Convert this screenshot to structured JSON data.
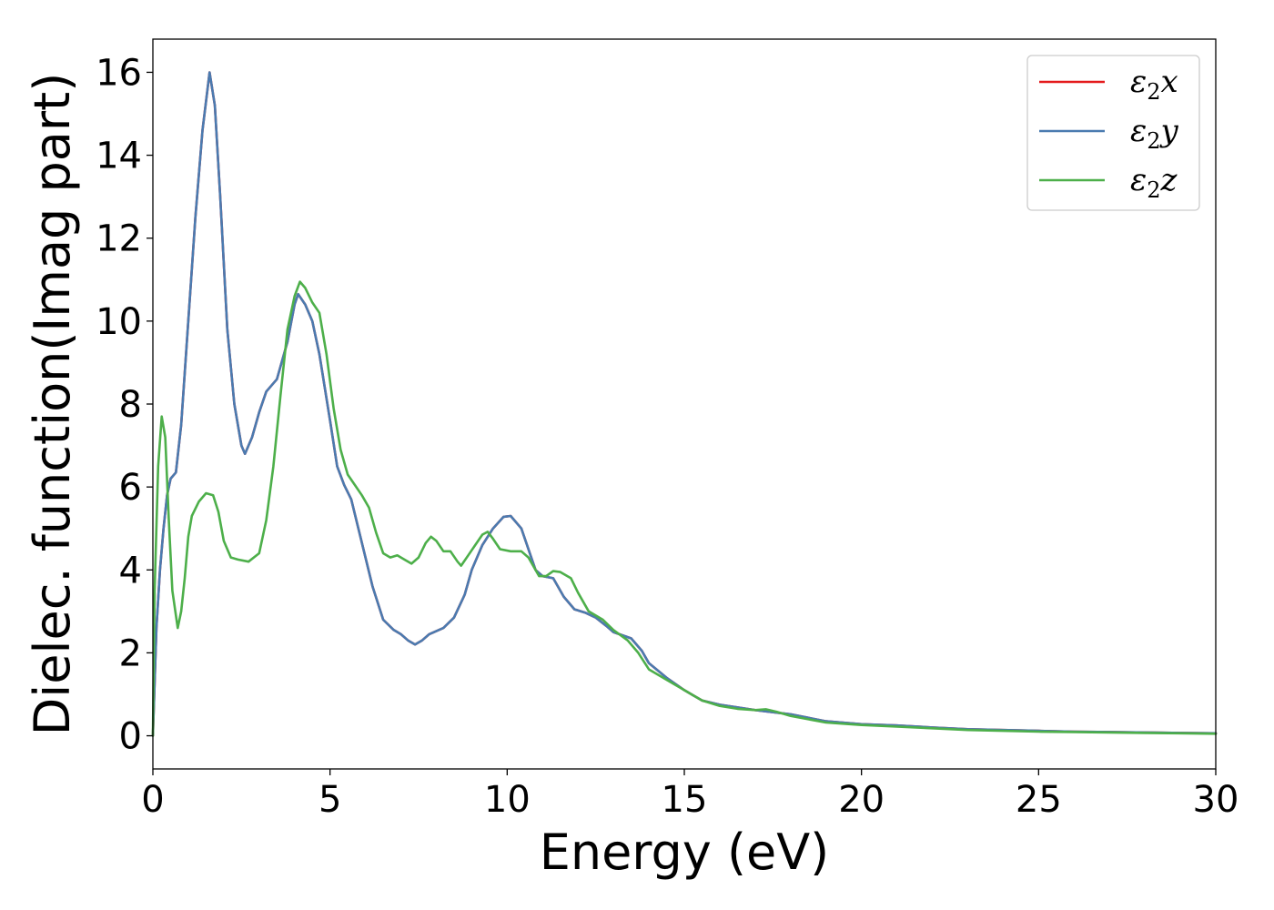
{
  "chart_data": {
    "type": "line",
    "xlabel": "Energy (eV)",
    "ylabel": "Dielec. function(Imag part)",
    "xlim": [
      0,
      30
    ],
    "ylim": [
      -0.8,
      16.8
    ],
    "x_ticks": [
      "0",
      "5",
      "10",
      "15",
      "20",
      "25",
      "30"
    ],
    "y_ticks": [
      "0",
      "2",
      "4",
      "6",
      "8",
      "10",
      "12",
      "14",
      "16"
    ],
    "grid": false,
    "legend_position": "top-right",
    "series": [
      {
        "name": "ε2x",
        "legend_base": "ε",
        "legend_sub": "2",
        "legend_tail": "x",
        "color": "#e41a1c",
        "points": [
          [
            0,
            0
          ],
          [
            0.1,
            2.6
          ],
          [
            0.2,
            4.0
          ],
          [
            0.3,
            5.0
          ],
          [
            0.4,
            5.8
          ],
          [
            0.5,
            6.2
          ],
          [
            0.65,
            6.35
          ],
          [
            0.8,
            7.5
          ],
          [
            1.0,
            10.0
          ],
          [
            1.2,
            12.5
          ],
          [
            1.4,
            14.6
          ],
          [
            1.6,
            16.0
          ],
          [
            1.75,
            15.2
          ],
          [
            1.9,
            13.0
          ],
          [
            2.1,
            9.8
          ],
          [
            2.3,
            8.0
          ],
          [
            2.5,
            7.0
          ],
          [
            2.6,
            6.8
          ],
          [
            2.8,
            7.2
          ],
          [
            3.0,
            7.8
          ],
          [
            3.2,
            8.3
          ],
          [
            3.5,
            8.6
          ],
          [
            3.8,
            9.5
          ],
          [
            4.0,
            10.4
          ],
          [
            4.1,
            10.65
          ],
          [
            4.3,
            10.4
          ],
          [
            4.5,
            10.0
          ],
          [
            4.7,
            9.2
          ],
          [
            5.0,
            7.6
          ],
          [
            5.2,
            6.5
          ],
          [
            5.4,
            6.05
          ],
          [
            5.6,
            5.7
          ],
          [
            5.8,
            5.0
          ],
          [
            6.0,
            4.3
          ],
          [
            6.2,
            3.6
          ],
          [
            6.5,
            2.8
          ],
          [
            6.8,
            2.55
          ],
          [
            7.0,
            2.45
          ],
          [
            7.2,
            2.3
          ],
          [
            7.4,
            2.2
          ],
          [
            7.6,
            2.3
          ],
          [
            7.8,
            2.45
          ],
          [
            8.2,
            2.6
          ],
          [
            8.5,
            2.85
          ],
          [
            8.8,
            3.4
          ],
          [
            9.0,
            4.0
          ],
          [
            9.3,
            4.6
          ],
          [
            9.6,
            5.0
          ],
          [
            9.9,
            5.28
          ],
          [
            10.1,
            5.3
          ],
          [
            10.4,
            5.0
          ],
          [
            10.6,
            4.5
          ],
          [
            10.8,
            4.0
          ],
          [
            11.0,
            3.85
          ],
          [
            11.3,
            3.8
          ],
          [
            11.6,
            3.35
          ],
          [
            11.9,
            3.05
          ],
          [
            12.2,
            2.97
          ],
          [
            12.5,
            2.85
          ],
          [
            12.8,
            2.65
          ],
          [
            13.0,
            2.5
          ],
          [
            13.5,
            2.35
          ],
          [
            13.8,
            2.05
          ],
          [
            14.0,
            1.75
          ],
          [
            14.5,
            1.4
          ],
          [
            15.0,
            1.1
          ],
          [
            15.5,
            0.85
          ],
          [
            16.0,
            0.75
          ],
          [
            17.0,
            0.62
          ],
          [
            18.0,
            0.52
          ],
          [
            19.0,
            0.35
          ],
          [
            20.0,
            0.28
          ],
          [
            21.0,
            0.25
          ],
          [
            22.0,
            0.2
          ],
          [
            23.0,
            0.16
          ],
          [
            24.0,
            0.14
          ],
          [
            25.0,
            0.12
          ],
          [
            26.0,
            0.1
          ],
          [
            27.0,
            0.09
          ],
          [
            28.0,
            0.08
          ],
          [
            29.0,
            0.07
          ],
          [
            30.0,
            0.06
          ]
        ]
      },
      {
        "name": "ε2y",
        "legend_base": "ε",
        "legend_sub": "2",
        "legend_tail": "y",
        "color": "#4a7bb0",
        "points": [
          [
            0,
            0
          ],
          [
            0.1,
            2.6
          ],
          [
            0.2,
            4.0
          ],
          [
            0.3,
            5.0
          ],
          [
            0.4,
            5.8
          ],
          [
            0.5,
            6.2
          ],
          [
            0.65,
            6.35
          ],
          [
            0.8,
            7.5
          ],
          [
            1.0,
            10.0
          ],
          [
            1.2,
            12.5
          ],
          [
            1.4,
            14.6
          ],
          [
            1.6,
            16.0
          ],
          [
            1.75,
            15.2
          ],
          [
            1.9,
            13.0
          ],
          [
            2.1,
            9.8
          ],
          [
            2.3,
            8.0
          ],
          [
            2.5,
            7.0
          ],
          [
            2.6,
            6.8
          ],
          [
            2.8,
            7.2
          ],
          [
            3.0,
            7.8
          ],
          [
            3.2,
            8.3
          ],
          [
            3.5,
            8.6
          ],
          [
            3.8,
            9.5
          ],
          [
            4.0,
            10.4
          ],
          [
            4.1,
            10.65
          ],
          [
            4.3,
            10.4
          ],
          [
            4.5,
            10.0
          ],
          [
            4.7,
            9.2
          ],
          [
            5.0,
            7.6
          ],
          [
            5.2,
            6.5
          ],
          [
            5.4,
            6.05
          ],
          [
            5.6,
            5.7
          ],
          [
            5.8,
            5.0
          ],
          [
            6.0,
            4.3
          ],
          [
            6.2,
            3.6
          ],
          [
            6.5,
            2.8
          ],
          [
            6.8,
            2.55
          ],
          [
            7.0,
            2.45
          ],
          [
            7.2,
            2.3
          ],
          [
            7.4,
            2.2
          ],
          [
            7.6,
            2.3
          ],
          [
            7.8,
            2.45
          ],
          [
            8.2,
            2.6
          ],
          [
            8.5,
            2.85
          ],
          [
            8.8,
            3.4
          ],
          [
            9.0,
            4.0
          ],
          [
            9.3,
            4.6
          ],
          [
            9.6,
            5.0
          ],
          [
            9.9,
            5.28
          ],
          [
            10.1,
            5.3
          ],
          [
            10.4,
            5.0
          ],
          [
            10.6,
            4.5
          ],
          [
            10.8,
            4.0
          ],
          [
            11.0,
            3.85
          ],
          [
            11.3,
            3.8
          ],
          [
            11.6,
            3.35
          ],
          [
            11.9,
            3.05
          ],
          [
            12.2,
            2.97
          ],
          [
            12.5,
            2.85
          ],
          [
            12.8,
            2.65
          ],
          [
            13.0,
            2.5
          ],
          [
            13.5,
            2.35
          ],
          [
            13.8,
            2.05
          ],
          [
            14.0,
            1.75
          ],
          [
            14.5,
            1.4
          ],
          [
            15.0,
            1.1
          ],
          [
            15.5,
            0.85
          ],
          [
            16.0,
            0.75
          ],
          [
            17.0,
            0.62
          ],
          [
            18.0,
            0.52
          ],
          [
            19.0,
            0.35
          ],
          [
            20.0,
            0.28
          ],
          [
            21.0,
            0.25
          ],
          [
            22.0,
            0.2
          ],
          [
            23.0,
            0.16
          ],
          [
            24.0,
            0.14
          ],
          [
            25.0,
            0.12
          ],
          [
            26.0,
            0.1
          ],
          [
            27.0,
            0.09
          ],
          [
            28.0,
            0.08
          ],
          [
            29.0,
            0.07
          ],
          [
            30.0,
            0.06
          ]
        ]
      },
      {
        "name": "ε2z",
        "legend_base": "ε",
        "legend_sub": "2",
        "legend_tail": "z",
        "color": "#4daf4a",
        "points": [
          [
            0,
            0
          ],
          [
            0.05,
            3.5
          ],
          [
            0.15,
            6.5
          ],
          [
            0.25,
            7.7
          ],
          [
            0.35,
            7.2
          ],
          [
            0.45,
            5.2
          ],
          [
            0.55,
            3.5
          ],
          [
            0.7,
            2.6
          ],
          [
            0.8,
            3.0
          ],
          [
            0.9,
            3.8
          ],
          [
            1.0,
            4.8
          ],
          [
            1.1,
            5.3
          ],
          [
            1.3,
            5.65
          ],
          [
            1.5,
            5.85
          ],
          [
            1.7,
            5.8
          ],
          [
            1.85,
            5.4
          ],
          [
            2.0,
            4.7
          ],
          [
            2.2,
            4.3
          ],
          [
            2.4,
            4.25
          ],
          [
            2.7,
            4.2
          ],
          [
            3.0,
            4.4
          ],
          [
            3.2,
            5.2
          ],
          [
            3.4,
            6.5
          ],
          [
            3.6,
            8.2
          ],
          [
            3.8,
            9.8
          ],
          [
            4.0,
            10.6
          ],
          [
            4.15,
            10.95
          ],
          [
            4.3,
            10.8
          ],
          [
            4.5,
            10.45
          ],
          [
            4.7,
            10.2
          ],
          [
            4.9,
            9.2
          ],
          [
            5.1,
            7.9
          ],
          [
            5.3,
            6.9
          ],
          [
            5.5,
            6.3
          ],
          [
            5.7,
            6.05
          ],
          [
            5.9,
            5.8
          ],
          [
            6.1,
            5.5
          ],
          [
            6.3,
            4.9
          ],
          [
            6.5,
            4.4
          ],
          [
            6.7,
            4.3
          ],
          [
            6.9,
            4.35
          ],
          [
            7.1,
            4.25
          ],
          [
            7.3,
            4.15
          ],
          [
            7.5,
            4.3
          ],
          [
            7.7,
            4.65
          ],
          [
            7.85,
            4.8
          ],
          [
            8.0,
            4.7
          ],
          [
            8.2,
            4.45
          ],
          [
            8.4,
            4.45
          ],
          [
            8.6,
            4.2
          ],
          [
            8.7,
            4.1
          ],
          [
            8.9,
            4.35
          ],
          [
            9.1,
            4.6
          ],
          [
            9.3,
            4.85
          ],
          [
            9.45,
            4.92
          ],
          [
            9.6,
            4.75
          ],
          [
            9.8,
            4.5
          ],
          [
            10.1,
            4.45
          ],
          [
            10.4,
            4.45
          ],
          [
            10.6,
            4.3
          ],
          [
            10.9,
            3.85
          ],
          [
            11.1,
            3.85
          ],
          [
            11.3,
            3.97
          ],
          [
            11.5,
            3.95
          ],
          [
            11.8,
            3.8
          ],
          [
            12.0,
            3.45
          ],
          [
            12.3,
            3.0
          ],
          [
            12.7,
            2.8
          ],
          [
            13.0,
            2.55
          ],
          [
            13.4,
            2.3
          ],
          [
            13.7,
            2.0
          ],
          [
            14.0,
            1.6
          ],
          [
            14.5,
            1.35
          ],
          [
            15.0,
            1.1
          ],
          [
            15.5,
            0.85
          ],
          [
            16.0,
            0.72
          ],
          [
            16.5,
            0.65
          ],
          [
            17.0,
            0.62
          ],
          [
            17.3,
            0.64
          ],
          [
            17.6,
            0.58
          ],
          [
            18.0,
            0.48
          ],
          [
            19.0,
            0.32
          ],
          [
            20.0,
            0.26
          ],
          [
            21.0,
            0.22
          ],
          [
            22.0,
            0.18
          ],
          [
            23.0,
            0.14
          ],
          [
            24.0,
            0.12
          ],
          [
            25.0,
            0.1
          ],
          [
            26.0,
            0.09
          ],
          [
            27.0,
            0.08
          ],
          [
            28.0,
            0.07
          ],
          [
            29.0,
            0.06
          ],
          [
            30.0,
            0.05
          ]
        ]
      }
    ]
  }
}
